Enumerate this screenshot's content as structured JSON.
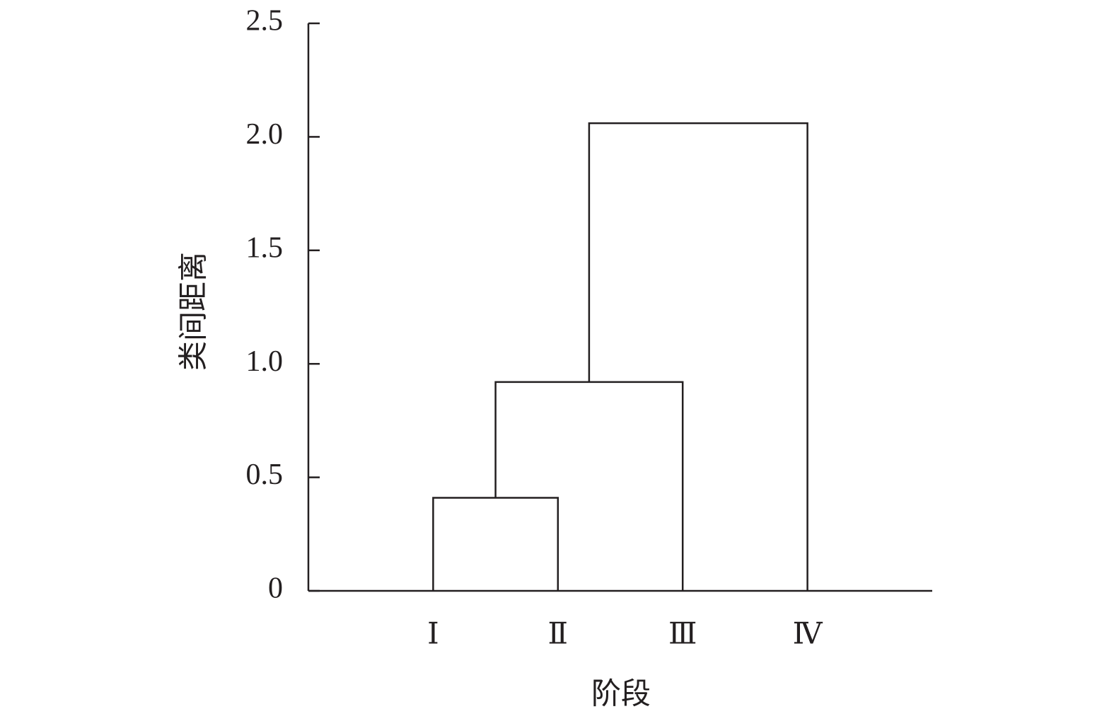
{
  "chart_data": {
    "type": "dendrogram",
    "x_label": "阶段",
    "y_label": "类间距离",
    "categories": [
      "Ⅰ",
      "Ⅱ",
      "Ⅲ",
      "Ⅳ"
    ],
    "merges": [
      {
        "left": 0,
        "right": 1,
        "height": 0.41
      },
      {
        "left": 4,
        "right": 2,
        "height": 0.92
      },
      {
        "left": 5,
        "right": 3,
        "height": 2.06
      }
    ],
    "color": "#231f20",
    "ylim": [
      0,
      2.5
    ],
    "yticks": [
      0,
      0.5,
      {
        "value": 1,
        "label": "1.0"
      },
      1.5,
      {
        "value": 2,
        "label": "2.0"
      },
      2.5
    ]
  }
}
